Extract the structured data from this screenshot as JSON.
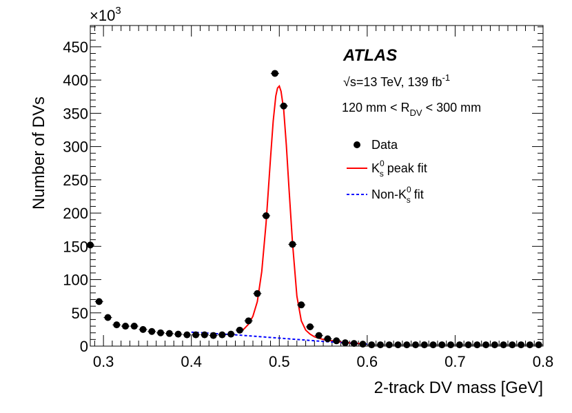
{
  "chart_data": {
    "type": "scatter",
    "xlabel": "2-track DV mass [GeV]",
    "ylabel": "Number of DVs",
    "y_multiplier": "×10",
    "y_multiplier_exp": "3",
    "xlim": [
      0.285,
      0.8
    ],
    "ylim": [
      0,
      482
    ],
    "x_ticks": [
      0.3,
      0.4,
      0.5,
      0.6,
      0.7,
      0.8
    ],
    "x_tick_labels": [
      "0.3",
      "0.4",
      "0.5",
      "0.6",
      "0.7",
      "0.8"
    ],
    "y_ticks": [
      0,
      50,
      100,
      150,
      200,
      250,
      300,
      350,
      400,
      450
    ],
    "y_tick_labels": [
      "0",
      "50",
      "100",
      "150",
      "200",
      "250",
      "300",
      "350",
      "400",
      "450"
    ],
    "annotations": {
      "atlas": "ATLAS",
      "energy_sqrt": "√s",
      "energy_rest": "=13 TeV, 139 fb",
      "energy_sup": "-1",
      "region_pre": "120 mm < R",
      "region_sub": "DV",
      "region_post": " < 300 mm"
    },
    "legend": {
      "position": "top-right",
      "data_label": "Data",
      "peak_K": "K",
      "peak_sup": "0",
      "peak_sub": "s",
      "peak_text": " peak fit",
      "nonk_pre": "Non-K",
      "nonk_sup": "0",
      "nonk_sub": "s",
      "nonk_text": " fit"
    },
    "series": [
      {
        "name": "Data",
        "kind": "points",
        "x": [
          0.285,
          0.295,
          0.305,
          0.315,
          0.325,
          0.335,
          0.345,
          0.355,
          0.365,
          0.375,
          0.385,
          0.395,
          0.405,
          0.415,
          0.425,
          0.435,
          0.445,
          0.455,
          0.465,
          0.475,
          0.485,
          0.495,
          0.505,
          0.515,
          0.525,
          0.535,
          0.545,
          0.555,
          0.565,
          0.575,
          0.585,
          0.595,
          0.605,
          0.615,
          0.625,
          0.635,
          0.645,
          0.655,
          0.665,
          0.675,
          0.685,
          0.695,
          0.705,
          0.715,
          0.725,
          0.735,
          0.745,
          0.755,
          0.765,
          0.775,
          0.785,
          0.795
        ],
        "y": [
          152,
          67,
          43,
          32,
          30,
          30,
          25,
          22,
          20,
          19,
          18,
          17,
          17,
          17,
          16,
          17,
          18,
          24,
          38,
          79,
          196,
          410,
          361,
          153,
          62,
          29,
          16,
          11,
          8,
          5,
          4,
          3,
          2,
          2,
          2,
          2,
          2,
          2,
          2,
          2,
          2,
          2,
          2,
          2,
          2,
          2,
          2,
          2,
          2,
          2,
          2,
          2
        ],
        "color": "#000000"
      },
      {
        "name": "K_s^0 peak fit",
        "kind": "line",
        "x": [
          0.455,
          0.46,
          0.465,
          0.47,
          0.475,
          0.48,
          0.485,
          0.49,
          0.493,
          0.496,
          0.498,
          0.5,
          0.502,
          0.505,
          0.508,
          0.511,
          0.515,
          0.52,
          0.525,
          0.53,
          0.535,
          0.54,
          0.545,
          0.55,
          0.555,
          0.56,
          0.565,
          0.57,
          0.575,
          0.58,
          0.585,
          0.59,
          0.595
        ],
        "y": [
          22,
          26,
          33,
          45,
          67,
          112,
          185,
          282,
          338,
          376,
          388,
          391,
          383,
          355,
          302,
          238,
          156,
          75,
          38,
          24,
          18,
          14,
          12,
          10,
          9,
          8,
          7,
          6,
          5,
          5,
          4,
          4,
          3
        ],
        "color": "#ff0000"
      },
      {
        "name": "Non-K_s^0 fit",
        "kind": "dashed",
        "x": [
          0.4,
          0.45,
          0.5,
          0.55,
          0.6
        ],
        "y": [
          21,
          17,
          12,
          7,
          3
        ],
        "color": "#0000ff"
      }
    ]
  }
}
